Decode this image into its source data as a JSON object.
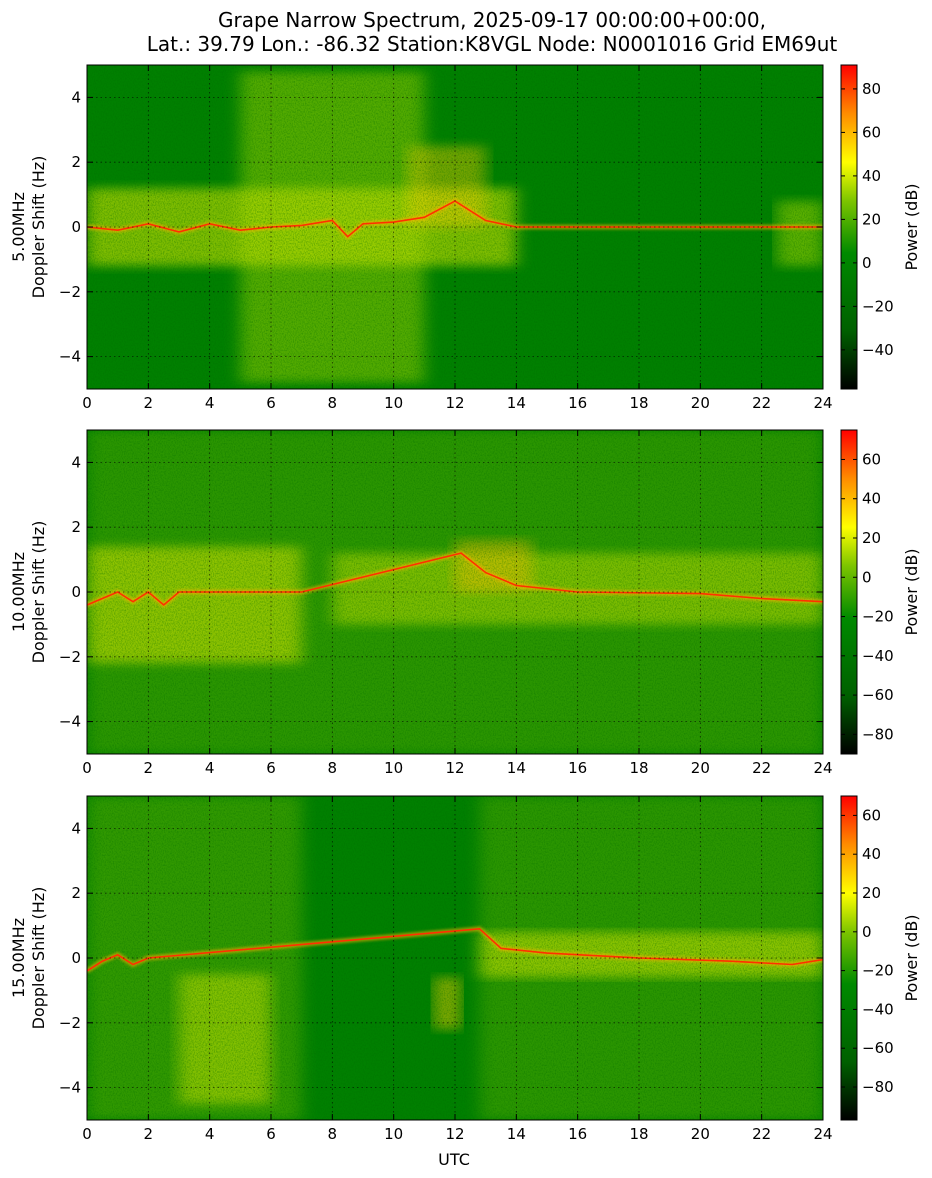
{
  "figure": {
    "title_line1": "Grape Narrow Spectrum, 2025-09-17 00:00:00+00:00,",
    "title_line2": "Lat.: 39.79 Lon.: -86.32 Station:K8VGL Node: N0001016 Grid EM69ut",
    "xlabel": "UTC"
  },
  "colors": {
    "colormap": [
      "#000000",
      "#006400",
      "#008000",
      "#7cc000",
      "#ffff00",
      "#ff8c00",
      "#ff0000"
    ],
    "background_green": "#008000",
    "grid": "#000000"
  },
  "chart_data": [
    {
      "type": "heatmap",
      "ylabel_line1": "5.00MHz",
      "ylabel_line2": "Doppler Shift (Hz)",
      "xlim": [
        0,
        24
      ],
      "ylim": [
        -5,
        5
      ],
      "xticks": [
        "0",
        "2",
        "4",
        "6",
        "8",
        "10",
        "12",
        "14",
        "16",
        "18",
        "20",
        "22",
        "24"
      ],
      "yticks": [
        "-4",
        "-2",
        "0",
        "2",
        "4"
      ],
      "colorbar_label": "Power (dB)",
      "colorbar_range": [
        -58,
        91
      ],
      "colorbar_ticks": [
        "-40",
        "-20",
        "0",
        "20",
        "40",
        "60",
        "80"
      ],
      "colorbar_tick_values": [
        -40,
        -20,
        0,
        20,
        40,
        60,
        80
      ],
      "grid": true,
      "carrier_trace": [
        {
          "x": 0,
          "y": 0.0
        },
        {
          "x": 1,
          "y": -0.1
        },
        {
          "x": 2,
          "y": 0.1
        },
        {
          "x": 3,
          "y": -0.15
        },
        {
          "x": 4,
          "y": 0.1
        },
        {
          "x": 5,
          "y": -0.1
        },
        {
          "x": 6,
          "y": 0.0
        },
        {
          "x": 7,
          "y": 0.05
        },
        {
          "x": 8,
          "y": 0.2
        },
        {
          "x": 8.5,
          "y": -0.3
        },
        {
          "x": 9,
          "y": 0.1
        },
        {
          "x": 10,
          "y": 0.15
        },
        {
          "x": 11,
          "y": 0.3
        },
        {
          "x": 12,
          "y": 0.8
        },
        {
          "x": 13,
          "y": 0.2
        },
        {
          "x": 14,
          "y": 0.0
        },
        {
          "x": 24,
          "y": 0.0
        }
      ]
    },
    {
      "type": "heatmap",
      "ylabel_line1": "10.00MHz",
      "ylabel_line2": "Doppler Shift (Hz)",
      "xlim": [
        0,
        24
      ],
      "ylim": [
        -5,
        5
      ],
      "xticks": [
        "0",
        "2",
        "4",
        "6",
        "8",
        "10",
        "12",
        "14",
        "16",
        "18",
        "20",
        "22",
        "24"
      ],
      "yticks": [
        "-4",
        "-2",
        "0",
        "2",
        "4"
      ],
      "colorbar_label": "Power (dB)",
      "colorbar_range": [
        -90,
        75
      ],
      "colorbar_ticks": [
        "-80",
        "-60",
        "-40",
        "-20",
        "0",
        "20",
        "40",
        "60"
      ],
      "colorbar_tick_values": [
        -80,
        -60,
        -40,
        -20,
        0,
        20,
        40,
        60
      ],
      "grid": true,
      "carrier_trace": [
        {
          "x": 0,
          "y": -0.4
        },
        {
          "x": 0.5,
          "y": -0.2
        },
        {
          "x": 1,
          "y": 0.0
        },
        {
          "x": 1.5,
          "y": -0.3
        },
        {
          "x": 2,
          "y": 0.0
        },
        {
          "x": 2.5,
          "y": -0.4
        },
        {
          "x": 3,
          "y": 0.0
        },
        {
          "x": 7,
          "y": 0.0
        },
        {
          "x": 12.2,
          "y": 1.2
        },
        {
          "x": 13,
          "y": 0.6
        },
        {
          "x": 14,
          "y": 0.2
        },
        {
          "x": 16,
          "y": 0.0
        },
        {
          "x": 20,
          "y": -0.05
        },
        {
          "x": 22,
          "y": -0.2
        },
        {
          "x": 24,
          "y": -0.3
        }
      ]
    },
    {
      "type": "heatmap",
      "ylabel_line1": "15.00MHz",
      "ylabel_line2": "Doppler Shift (Hz)",
      "xlim": [
        0,
        24
      ],
      "ylim": [
        -5,
        5
      ],
      "xticks": [
        "0",
        "2",
        "4",
        "6",
        "8",
        "10",
        "12",
        "14",
        "16",
        "18",
        "20",
        "22",
        "24"
      ],
      "yticks": [
        "-4",
        "-2",
        "0",
        "2",
        "4"
      ],
      "colorbar_label": "Power (dB)",
      "colorbar_range": [
        -97,
        70
      ],
      "colorbar_ticks": [
        "-80",
        "-60",
        "-40",
        "-20",
        "0",
        "20",
        "40",
        "60"
      ],
      "colorbar_tick_values": [
        -80,
        -60,
        -40,
        -20,
        0,
        20,
        40,
        60
      ],
      "grid": true,
      "carrier_trace": [
        {
          "x": 0,
          "y": -0.4
        },
        {
          "x": 0.5,
          "y": -0.1
        },
        {
          "x": 1,
          "y": 0.1
        },
        {
          "x": 1.5,
          "y": -0.2
        },
        {
          "x": 2,
          "y": 0.0
        },
        {
          "x": 12.8,
          "y": 0.9
        },
        {
          "x": 13.5,
          "y": 0.3
        },
        {
          "x": 15,
          "y": 0.15
        },
        {
          "x": 18,
          "y": 0.0
        },
        {
          "x": 21,
          "y": -0.1
        },
        {
          "x": 23,
          "y": -0.2
        },
        {
          "x": 24,
          "y": -0.05
        }
      ]
    }
  ]
}
